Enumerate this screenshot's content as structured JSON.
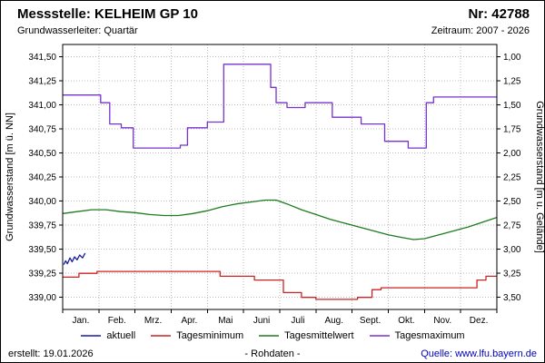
{
  "header": {
    "title": "Messstelle: KELHEIM GP 10",
    "number": "Nr: 42788"
  },
  "subheader": {
    "aquifer": "Grundwasserleiter: Quartär",
    "period": "Zeitraum: 2007 - 2026"
  },
  "axes": {
    "left_label": "Grundwasserstand [m ü. NN]",
    "right_label": "Grundwasserstand [m u. Gelände]"
  },
  "chart_data": {
    "type": "line",
    "title": "",
    "xlabel": "",
    "ylabel_left": "Grundwasserstand [m ü. NN]",
    "ylabel_right": "Grundwasserstand [m u. Gelände]",
    "months": [
      "Jan.",
      "Feb.",
      "Mrz.",
      "Apr.",
      "Mai",
      "Juni",
      "Juli",
      "Aug.",
      "Sept.",
      "Okt.",
      "Nov.",
      "Dez."
    ],
    "ylim_left": [
      338.875,
      341.625
    ],
    "y_ticks": {
      "start": 339.0,
      "end": 341.5,
      "step": 0.25
    },
    "right_axis": {
      "ground_elevation": 342.5,
      "tick_top": "1,00",
      "tick_bottom": "3,50"
    },
    "grid": true,
    "legend_position": "bottom",
    "series": [
      {
        "name": "Tagesmaximum",
        "color": "#7733cc",
        "points": [
          [
            0,
            341.1
          ],
          [
            1.05,
            341.1
          ],
          [
            1.05,
            341.02
          ],
          [
            1.3,
            341.02
          ],
          [
            1.3,
            340.8
          ],
          [
            1.62,
            340.8
          ],
          [
            1.62,
            340.76
          ],
          [
            1.95,
            340.76
          ],
          [
            1.95,
            340.55
          ],
          [
            3.25,
            340.55
          ],
          [
            3.25,
            340.58
          ],
          [
            3.45,
            340.58
          ],
          [
            3.45,
            340.76
          ],
          [
            4.0,
            340.76
          ],
          [
            4.0,
            340.82
          ],
          [
            4.45,
            340.82
          ],
          [
            4.45,
            341.42
          ],
          [
            5.75,
            341.42
          ],
          [
            5.75,
            341.18
          ],
          [
            5.9,
            341.18
          ],
          [
            5.9,
            341.02
          ],
          [
            6.2,
            341.02
          ],
          [
            6.2,
            340.97
          ],
          [
            6.7,
            340.97
          ],
          [
            6.7,
            341.02
          ],
          [
            7.45,
            341.02
          ],
          [
            7.45,
            340.87
          ],
          [
            8.25,
            340.87
          ],
          [
            8.25,
            340.8
          ],
          [
            8.9,
            340.8
          ],
          [
            8.9,
            340.62
          ],
          [
            9.55,
            340.62
          ],
          [
            9.55,
            340.55
          ],
          [
            10.05,
            340.55
          ],
          [
            10.05,
            341.02
          ],
          [
            10.25,
            341.02
          ],
          [
            10.25,
            341.08
          ],
          [
            12,
            341.08
          ]
        ]
      },
      {
        "name": "Tagesmittelwert",
        "color": "#1e7b1e",
        "points": [
          [
            0,
            339.87
          ],
          [
            0.4,
            339.89
          ],
          [
            0.8,
            339.91
          ],
          [
            1.2,
            339.91
          ],
          [
            1.6,
            339.89
          ],
          [
            2.0,
            339.88
          ],
          [
            2.4,
            339.86
          ],
          [
            2.8,
            339.85
          ],
          [
            3.2,
            339.85
          ],
          [
            3.6,
            339.87
          ],
          [
            4.0,
            339.9
          ],
          [
            4.4,
            339.94
          ],
          [
            4.8,
            339.97
          ],
          [
            5.2,
            339.99
          ],
          [
            5.6,
            340.01
          ],
          [
            5.9,
            340.01
          ],
          [
            6.2,
            339.97
          ],
          [
            6.6,
            339.91
          ],
          [
            7.0,
            339.86
          ],
          [
            7.4,
            339.81
          ],
          [
            7.8,
            339.77
          ],
          [
            8.2,
            339.73
          ],
          [
            8.6,
            339.69
          ],
          [
            9.0,
            339.65
          ],
          [
            9.4,
            339.62
          ],
          [
            9.7,
            339.6
          ],
          [
            10.0,
            339.61
          ],
          [
            10.4,
            339.65
          ],
          [
            10.8,
            339.69
          ],
          [
            11.2,
            339.73
          ],
          [
            11.6,
            339.78
          ],
          [
            12,
            339.83
          ]
        ]
      },
      {
        "name": "Tagesminimum",
        "color": "#cc2222",
        "points": [
          [
            0,
            339.21
          ],
          [
            0.45,
            339.21
          ],
          [
            0.45,
            339.25
          ],
          [
            0.95,
            339.25
          ],
          [
            0.95,
            339.27
          ],
          [
            4.35,
            339.27
          ],
          [
            4.35,
            339.22
          ],
          [
            5.3,
            339.22
          ],
          [
            5.3,
            339.18
          ],
          [
            6.1,
            339.18
          ],
          [
            6.1,
            339.05
          ],
          [
            6.6,
            339.05
          ],
          [
            6.6,
            339.0
          ],
          [
            7.0,
            339.0
          ],
          [
            7.0,
            338.98
          ],
          [
            8.15,
            338.98
          ],
          [
            8.15,
            339.0
          ],
          [
            8.55,
            339.0
          ],
          [
            8.55,
            339.08
          ],
          [
            8.8,
            339.08
          ],
          [
            8.8,
            339.1
          ],
          [
            11.45,
            339.1
          ],
          [
            11.45,
            339.18
          ],
          [
            11.7,
            339.18
          ],
          [
            11.7,
            339.22
          ],
          [
            12,
            339.22
          ]
        ]
      },
      {
        "name": "aktuell",
        "color": "#1a1aa0",
        "points": [
          [
            0.03,
            339.34
          ],
          [
            0.08,
            339.38
          ],
          [
            0.13,
            339.35
          ],
          [
            0.2,
            339.41
          ],
          [
            0.26,
            339.37
          ],
          [
            0.33,
            339.42
          ],
          [
            0.4,
            339.39
          ],
          [
            0.47,
            339.44
          ],
          [
            0.55,
            339.41
          ],
          [
            0.62,
            339.46
          ]
        ]
      }
    ]
  },
  "legend": {
    "items": [
      {
        "label": "aktuell",
        "color": "#1a1aa0"
      },
      {
        "label": "Tagesminimum",
        "color": "#cc2222"
      },
      {
        "label": "Tagesmittelwert",
        "color": "#1e7b1e"
      },
      {
        "label": "Tagesmaximum",
        "color": "#7733cc"
      }
    ]
  },
  "footer": {
    "created": "erstellt: 19.01.2026",
    "center": "- Rohdaten -",
    "source": "Quelle: www.lfu.bayern.de"
  }
}
